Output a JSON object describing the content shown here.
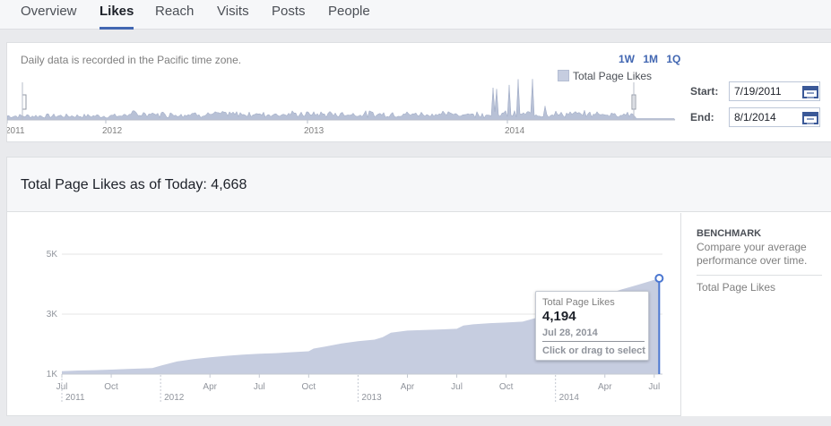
{
  "tabs": [
    {
      "label": "Overview"
    },
    {
      "label": "Likes"
    },
    {
      "label": "Reach"
    },
    {
      "label": "Visits"
    },
    {
      "label": "Posts"
    },
    {
      "label": "People"
    }
  ],
  "active_tab": "Likes",
  "range_selector": {
    "note": "Daily data is recorded in the Pacific time zone.",
    "buttons": [
      "1W",
      "1M",
      "1Q"
    ],
    "start_label": "Start:",
    "start_value": "7/19/2011",
    "end_label": "End:",
    "end_value": "8/1/2014",
    "timeline_year_labels": [
      "2011",
      "2012",
      "2013",
      "2014"
    ]
  },
  "summary": {
    "title": "Total Page Likes as of Today:",
    "value": "4,668"
  },
  "benchmark": {
    "title": "BENCHMARK",
    "description": "Compare your average performance over time.",
    "item": "Total Page Likes"
  },
  "tooltip": {
    "label": "Total Page Likes",
    "value": "4,194",
    "date": "Jul 28, 2014",
    "hint": "Click or drag to select"
  },
  "colors": {
    "accent": "#4267b2",
    "area_fill": "#c6cde0",
    "highlight_line": "#4a76d0"
  },
  "chart_data": {
    "type": "area",
    "legend": "Total Page Likes",
    "legend_placement": "top-right",
    "y_ticks": [
      "1K",
      "3K",
      "5K"
    ],
    "ylim": [
      1000,
      5000
    ],
    "x_tick_labels": [
      "Jul",
      "Oct",
      "Apr",
      "Jul",
      "Oct",
      "Apr",
      "Jul",
      "Oct",
      "Apr",
      "Jul"
    ],
    "x_tick_months": [
      0,
      3,
      9,
      12,
      15,
      21,
      24,
      27,
      33,
      36
    ],
    "x_year_labels": [
      "2011",
      "2012",
      "2013",
      "2014"
    ],
    "x_year_months": [
      0,
      6,
      18,
      30
    ],
    "x_range_months": [
      0,
      36.5
    ],
    "grid": true,
    "series": [
      {
        "name": "Total Page Likes",
        "months": [
          0,
          1,
          2,
          3,
          4,
          5,
          5.5,
          6,
          7,
          8,
          9,
          10,
          11,
          12,
          13,
          14,
          15,
          15.3,
          16,
          17,
          18,
          19,
          19.5,
          20,
          21,
          22,
          23,
          24,
          24.4,
          25,
          26,
          27,
          28,
          29,
          30,
          31,
          32,
          33,
          34,
          35,
          36,
          36.3
        ],
        "values": [
          1100,
          1120,
          1130,
          1150,
          1170,
          1190,
          1200,
          1280,
          1420,
          1500,
          1560,
          1610,
          1650,
          1680,
          1700,
          1730,
          1760,
          1850,
          1920,
          2020,
          2100,
          2150,
          2230,
          2380,
          2450,
          2470,
          2490,
          2510,
          2620,
          2660,
          2700,
          2720,
          2750,
          2900,
          3100,
          3300,
          3480,
          3640,
          3820,
          3980,
          4140,
          4194
        ]
      }
    ],
    "selected_point": {
      "month": 36.3,
      "value": 4194
    }
  }
}
